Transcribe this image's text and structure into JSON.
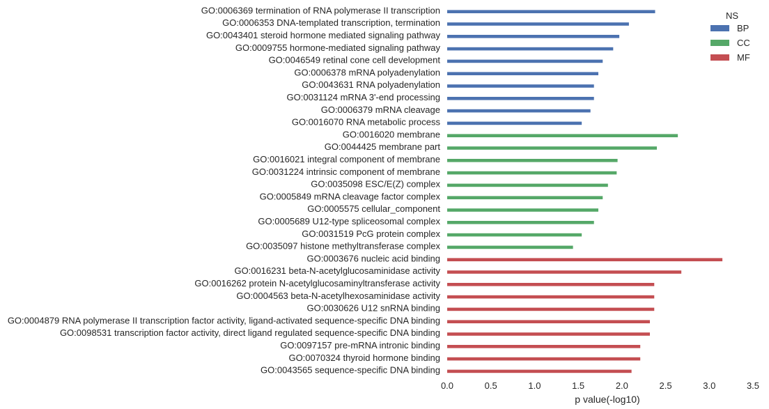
{
  "chart_data": {
    "type": "bar",
    "orientation": "horizontal",
    "xlabel": "p value(-log10)",
    "xlim": [
      0,
      3.5
    ],
    "xticks": [
      "0.0",
      "0.5",
      "1.0",
      "1.5",
      "2.0",
      "2.5",
      "3.0",
      "3.5"
    ],
    "grid": false,
    "legend": {
      "title": "NS",
      "placement": "top-right",
      "entries": [
        {
          "name": "BP",
          "color": "#4c72b0"
        },
        {
          "name": "CC",
          "color": "#55a868"
        },
        {
          "name": "MF",
          "color": "#c44e52"
        }
      ]
    },
    "categories": [
      "GO:0006369 termination of RNA polymerase II transcription",
      "GO:0006353 DNA-templated transcription, termination",
      "GO:0043401 steroid hormone mediated signaling pathway",
      "GO:0009755 hormone-mediated signaling pathway",
      "GO:0046549 retinal cone cell development",
      "GO:0006378 mRNA polyadenylation",
      "GO:0043631 RNA polyadenylation",
      "GO:0031124 mRNA 3'-end processing",
      "GO:0006379 mRNA cleavage",
      "GO:0016070 RNA metabolic process",
      "GO:0016020 membrane",
      "GO:0044425 membrane part",
      "GO:0016021 integral component of membrane",
      "GO:0031224 intrinsic component of membrane",
      "GO:0035098 ESC/E(Z) complex",
      "GO:0005849 mRNA cleavage factor complex",
      "GO:0005575 cellular_component",
      "GO:0005689 U12-type spliceosomal complex",
      "GO:0031519 PcG protein complex",
      "GO:0035097 histone methyltransferase complex",
      "GO:0003676 nucleic acid binding",
      "GO:0016231 beta-N-acetylglucosaminidase activity",
      "GO:0016262 protein N-acetylglucosaminyltransferase activity",
      "GO:0004563 beta-N-acetylhexosaminidase activity",
      "GO:0030626 U12 snRNA binding",
      "GO:0004879 RNA polymerase II transcription factor activity, ligand-activated sequence-specific DNA binding",
      "GO:0098531 transcription factor activity, direct ligand regulated sequence-specific DNA binding",
      "GO:0097157 pre-mRNA intronic binding",
      "GO:0070324 thyroid hormone binding",
      "GO:0043565 sequence-specific DNA binding"
    ],
    "groups": [
      "BP",
      "BP",
      "BP",
      "BP",
      "BP",
      "BP",
      "BP",
      "BP",
      "BP",
      "BP",
      "CC",
      "CC",
      "CC",
      "CC",
      "CC",
      "CC",
      "CC",
      "CC",
      "CC",
      "CC",
      "MF",
      "MF",
      "MF",
      "MF",
      "MF",
      "MF",
      "MF",
      "MF",
      "MF",
      "MF"
    ],
    "values": [
      2.38,
      2.08,
      1.97,
      1.9,
      1.78,
      1.73,
      1.68,
      1.68,
      1.64,
      1.54,
      2.64,
      2.4,
      1.95,
      1.94,
      1.84,
      1.78,
      1.73,
      1.68,
      1.54,
      1.44,
      3.15,
      2.68,
      2.37,
      2.37,
      2.37,
      2.32,
      2.32,
      2.21,
      2.21,
      2.11
    ]
  }
}
